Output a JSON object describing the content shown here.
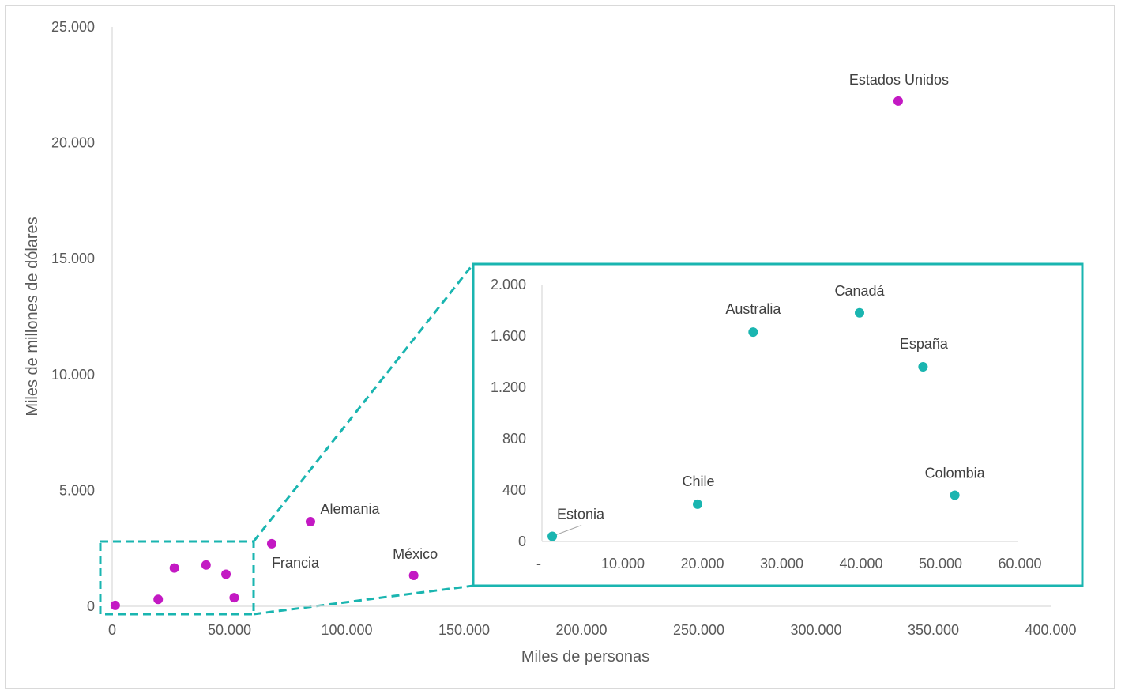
{
  "chart_data": [
    {
      "type": "scatter",
      "title": "",
      "xlabel": "Miles de personas",
      "ylabel": "Miles de millones de dólares",
      "xlim": [
        0,
        400000
      ],
      "ylim": [
        0,
        25000
      ],
      "x_ticks": [
        0,
        50000,
        100000,
        150000,
        200000,
        250000,
        300000,
        350000,
        400000
      ],
      "x_tick_labels": [
        "0",
        "50.000",
        "100.000",
        "150.000",
        "200.000",
        "250.000",
        "300.000",
        "350.000",
        "400.000"
      ],
      "y_ticks": [
        0,
        5000,
        10000,
        15000,
        20000,
        25000
      ],
      "y_tick_labels": [
        "0",
        "5.000",
        "10.000",
        "15.000",
        "20.000",
        "25.000"
      ],
      "grid": false,
      "color": "#c319c3",
      "points": [
        {
          "label": "",
          "x": 1300,
          "y": 40
        },
        {
          "label": "",
          "x": 19600,
          "y": 300
        },
        {
          "label": "",
          "x": 26500,
          "y": 1650
        },
        {
          "label": "",
          "x": 40000,
          "y": 1780
        },
        {
          "label": "",
          "x": 48500,
          "y": 1380
        },
        {
          "label": "",
          "x": 52000,
          "y": 370
        },
        {
          "label": "Francia",
          "x": 68000,
          "y": 2700
        },
        {
          "label": "Alemania",
          "x": 84500,
          "y": 3650
        },
        {
          "label": "México",
          "x": 128500,
          "y": 1330
        },
        {
          "label": "Estados Unidos",
          "x": 335000,
          "y": 21800
        }
      ]
    },
    {
      "type": "scatter",
      "title": "",
      "xlabel": "",
      "ylabel": "",
      "xlim": [
        0,
        60000
      ],
      "ylim": [
        0,
        2000
      ],
      "x_ticks": [
        0,
        10000,
        20000,
        30000,
        40000,
        50000,
        60000
      ],
      "x_tick_labels": [
        "-",
        "10.000",
        "20.000",
        "30.000",
        "40.000",
        "50.000",
        "60.000"
      ],
      "y_ticks": [
        0,
        400,
        800,
        1200,
        1600,
        2000
      ],
      "y_tick_labels": [
        "0",
        "400",
        "800",
        "1.200",
        "1.600",
        "2.000"
      ],
      "grid": false,
      "color": "#1ab5b0",
      "points": [
        {
          "label": "Estonia",
          "x": 1300,
          "y": 40
        },
        {
          "label": "Chile",
          "x": 19600,
          "y": 290
        },
        {
          "label": "Australia",
          "x": 26600,
          "y": 1630
        },
        {
          "label": "Canadá",
          "x": 40000,
          "y": 1780
        },
        {
          "label": "España",
          "x": 48000,
          "y": 1360
        },
        {
          "label": "Colombia",
          "x": 52000,
          "y": 360
        }
      ]
    }
  ]
}
